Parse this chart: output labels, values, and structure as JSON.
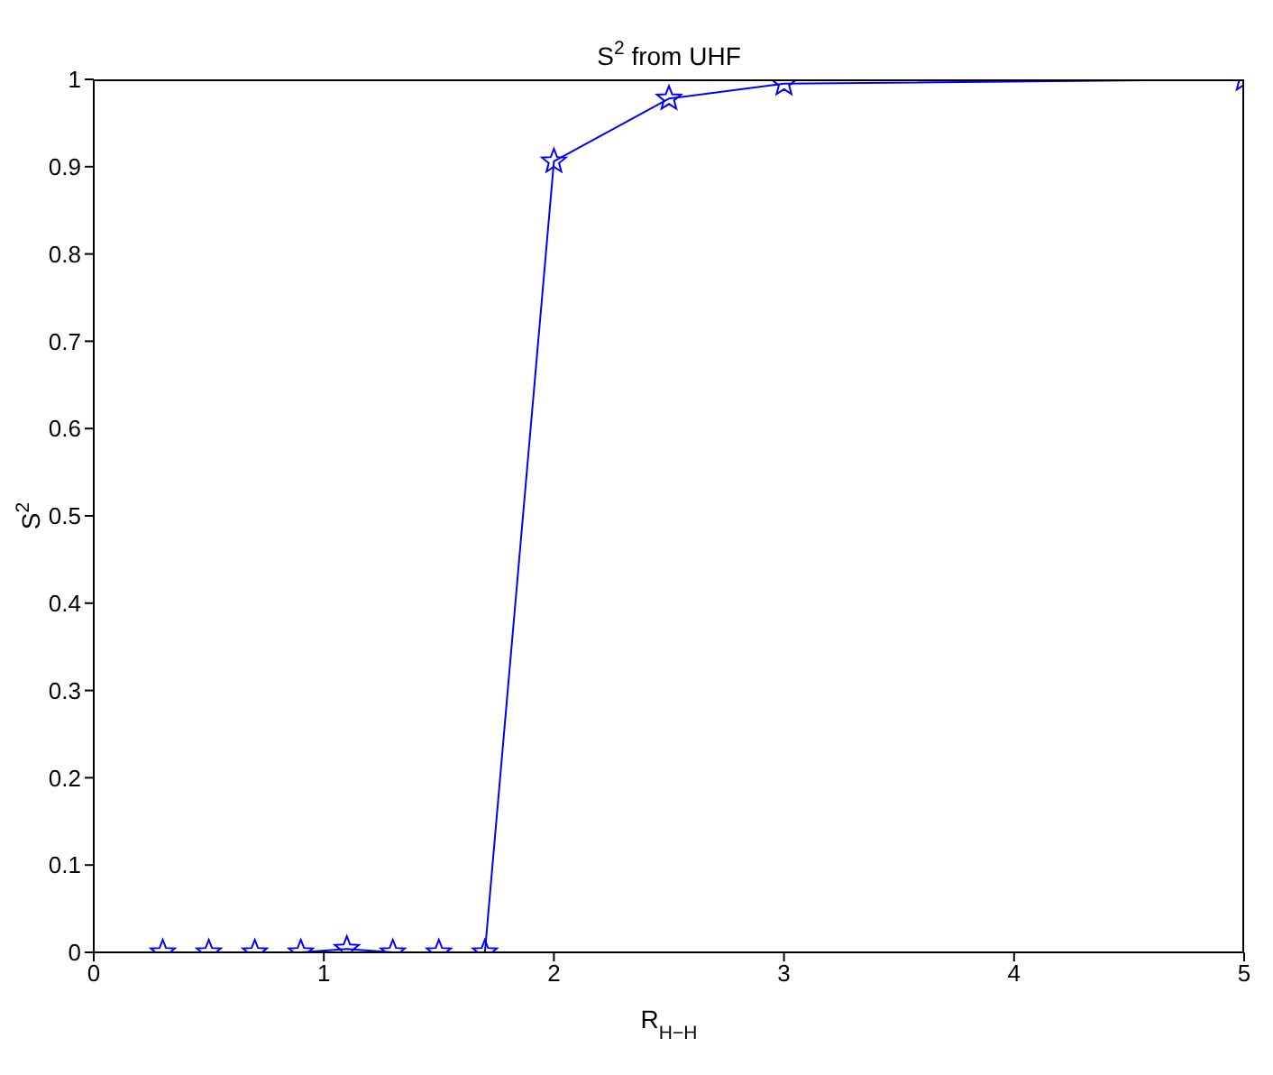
{
  "chart_data": {
    "type": "line",
    "title": "S$^{2}$ from UHF",
    "xlabel": "R$_{H−H}$",
    "ylabel": "S$^{2}$",
    "x": [
      0.3,
      0.5,
      0.7,
      0.9,
      1.1,
      1.3,
      1.5,
      1.7,
      2.0,
      2.5,
      3.0,
      5.0
    ],
    "series": [
      {
        "color": "#0000ff",
        "values": [
          0,
          0,
          0,
          0,
          0.004,
          0,
          0,
          0,
          0.906,
          0.978,
          0.995,
          1.0
        ]
      }
    ],
    "xlim": [
      0,
      5
    ],
    "xticks": [
      0,
      1,
      2,
      3,
      4,
      5
    ],
    "ylim": [
      0,
      1
    ],
    "yticks": [
      0,
      0.1,
      0.2,
      0.3,
      0.4,
      0.5,
      0.6,
      0.7,
      0.8,
      0.9,
      1
    ],
    "grid": false,
    "legend": false,
    "marker": "star",
    "line_style": "solid"
  }
}
